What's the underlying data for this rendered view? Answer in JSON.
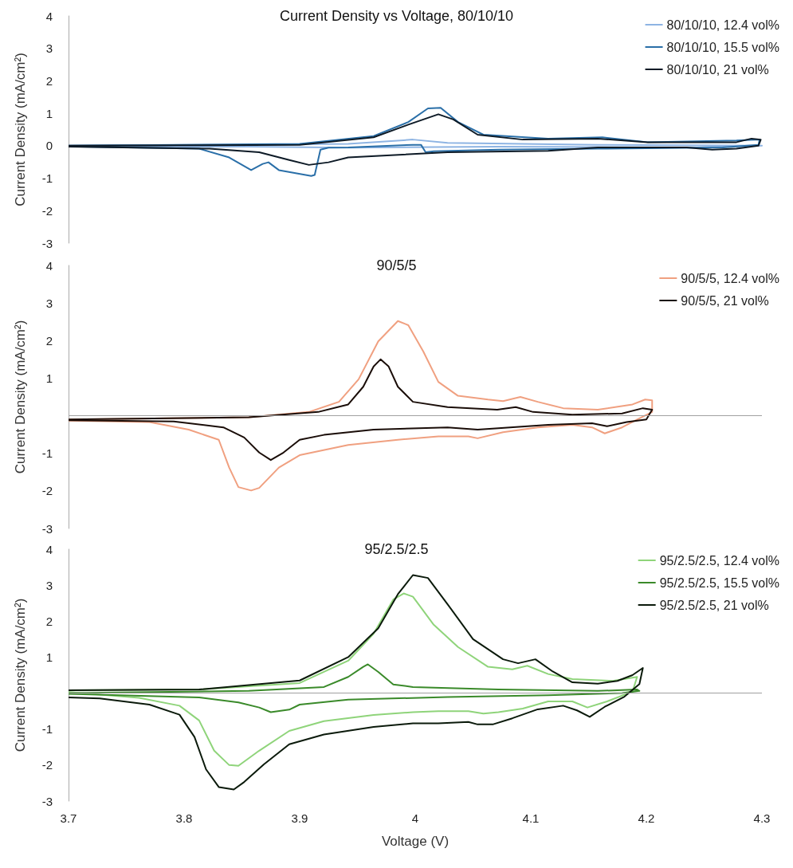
{
  "chart_data": [
    {
      "type": "line",
      "title": "Current Density vs Voltage, 80/10/10",
      "ylabel": "Current Density (mA/cm²)",
      "xlim": [
        3.7,
        4.3
      ],
      "ylim": [
        -3,
        4
      ],
      "yticks": [
        -3,
        -2,
        -1,
        0,
        1,
        2,
        3,
        4
      ],
      "tick_labels": "y",
      "grid": false,
      "legend": "top right",
      "marker": "none",
      "line_style": "solid",
      "series": [
        {
          "name": "80/10/10, 12.4 vol%",
          "color": "#8eb4e3",
          "x": [
            3.7,
            3.942,
            3.998,
            4.028,
            4.158,
            4.3,
            4.244,
            4.072,
            3.942,
            3.856,
            3.7
          ],
          "values": [
            0,
            0.06,
            0.19,
            0.09,
            0.03,
            0,
            -0.05,
            -0.03,
            -0.06,
            -0.03,
            -0.02
          ]
        },
        {
          "name": "80/10/10, 15.5 vol%",
          "color": "#2a6fa8",
          "x": [
            3.7,
            3.9,
            3.964,
            3.994,
            4.011,
            4.022,
            4.037,
            4.059,
            4.115,
            4.162,
            4.201,
            4.278,
            4.298,
            4.297,
            4.266,
            4.158,
            4.072,
            4.016,
            4.009,
            4.005,
            3.998,
            3.942,
            3.925,
            3.918,
            3.913,
            3.91,
            3.882,
            3.873,
            3.868,
            3.858,
            3.839,
            3.813,
            3.7
          ],
          "values": [
            0,
            0.06,
            0.3,
            0.73,
            1.15,
            1.17,
            0.73,
            0.34,
            0.22,
            0.26,
            0.11,
            0.16,
            0.19,
            0.03,
            -0.05,
            -0.09,
            -0.12,
            -0.17,
            -0.2,
            0.03,
            0.03,
            -0.05,
            -0.06,
            -0.12,
            -0.9,
            -0.93,
            -0.75,
            -0.51,
            -0.56,
            -0.75,
            -0.36,
            -0.09,
            -0.02
          ]
        },
        {
          "name": "80/10/10, 21 vol%",
          "color": "#0d1a26",
          "x": [
            3.7,
            3.9,
            3.964,
            3.994,
            4.02,
            4.033,
            4.054,
            4.093,
            4.158,
            4.201,
            4.278,
            4.291,
            4.299,
            4.297,
            4.278,
            4.257,
            4.235,
            4.158,
            4.115,
            4.028,
            3.942,
            3.925,
            3.908,
            3.891,
            3.865,
            3.822,
            3.7
          ],
          "values": [
            0,
            0.03,
            0.26,
            0.65,
            0.97,
            0.81,
            0.34,
            0.19,
            0.22,
            0.11,
            0.11,
            0.22,
            0.19,
            0,
            -0.09,
            -0.12,
            -0.05,
            -0.05,
            -0.16,
            -0.2,
            -0.36,
            -0.51,
            -0.59,
            -0.44,
            -0.2,
            -0.09,
            -0.03
          ]
        }
      ]
    },
    {
      "type": "line",
      "title": "90/5/5",
      "ylabel": "Current Density (mA/cm²)",
      "xlim": [
        3.7,
        4.3
      ],
      "ylim": [
        -3,
        4
      ],
      "yticks": [
        -3,
        -2,
        -1,
        1,
        2,
        3,
        4
      ],
      "ref_lines": [
        {
          "axis": "y",
          "value": 0,
          "color": "#a0a0a0"
        }
      ],
      "tick_labels": "y",
      "grid": false,
      "legend": "top right",
      "marker": "none",
      "line_style": "solid",
      "series": [
        {
          "name": "90/5/5, 12.4 vol%",
          "color": "#f0a080",
          "x": [
            3.7,
            3.856,
            3.908,
            3.934,
            3.951,
            3.968,
            3.985,
            3.994,
            4.007,
            4.02,
            4.037,
            4.063,
            4.076,
            4.091,
            4.106,
            4.128,
            4.158,
            4.188,
            4.199,
            4.205,
            4.205,
            4.192,
            4.179,
            4.164,
            4.153,
            4.136,
            4.106,
            4.076,
            4.054,
            4.046,
            4.02,
            3.985,
            3.942,
            3.9,
            3.882,
            3.865,
            3.858,
            3.847,
            3.839,
            3.83,
            3.804,
            3.77,
            3.7
          ],
          "values": [
            -0.1,
            -0.04,
            0.1,
            0.37,
            0.97,
            1.98,
            2.52,
            2.41,
            1.71,
            0.9,
            0.53,
            0.43,
            0.39,
            0.5,
            0.37,
            0.2,
            0.16,
            0.3,
            0.43,
            0.41,
            0.1,
            -0.1,
            -0.31,
            -0.47,
            -0.31,
            -0.24,
            -0.31,
            -0.44,
            -0.6,
            -0.55,
            -0.55,
            -0.64,
            -0.78,
            -1.05,
            -1.38,
            -1.92,
            -1.99,
            -1.9,
            -1.38,
            -0.64,
            -0.37,
            -0.17,
            -0.13
          ]
        },
        {
          "name": "90/5/5, 21 vol%",
          "color": "#1a0d08",
          "x": [
            3.7,
            3.856,
            3.916,
            3.942,
            3.955,
            3.964,
            3.97,
            3.977,
            3.985,
            3.998,
            4.028,
            4.071,
            4.087,
            4.102,
            4.136,
            4.179,
            4.197,
            4.205,
            4.2,
            4.183,
            4.166,
            4.153,
            4.115,
            4.072,
            4.054,
            4.028,
            3.964,
            3.921,
            3.9,
            3.886,
            3.875,
            3.865,
            3.852,
            3.834,
            3.791,
            3.7
          ],
          "values": [
            -0.1,
            -0.04,
            0.1,
            0.3,
            0.77,
            1.31,
            1.5,
            1.31,
            0.77,
            0.37,
            0.23,
            0.16,
            0.23,
            0.1,
            0.03,
            0.06,
            0.2,
            0.16,
            -0.1,
            -0.17,
            -0.28,
            -0.2,
            -0.24,
            -0.33,
            -0.37,
            -0.31,
            -0.37,
            -0.51,
            -0.64,
            -0.98,
            -1.18,
            -0.98,
            -0.58,
            -0.31,
            -0.15,
            -0.12
          ]
        }
      ]
    },
    {
      "type": "line",
      "title": "95/2.5/2.5",
      "xlabel": "Voltage (V)",
      "ylabel": "Current Density (mA/cm²)",
      "xlim": [
        3.7,
        4.3
      ],
      "xticks": [
        3.7,
        3.8,
        3.9,
        4,
        4.1,
        4.2,
        4.3
      ],
      "ylim": [
        -3,
        4
      ],
      "yticks": [
        -3,
        -2,
        -1,
        1,
        2,
        3,
        4
      ],
      "ref_lines": [
        {
          "axis": "y",
          "value": 0,
          "color": "#a0a0a0"
        }
      ],
      "grid": false,
      "legend": "top right",
      "marker": "none",
      "line_style": "solid",
      "series": [
        {
          "name": "95/2.5/2.5, 12.4 vol%",
          "color": "#8fd47a",
          "x": [
            3.7,
            3.813,
            3.9,
            3.942,
            3.964,
            3.981,
            3.99,
            3.998,
            4.016,
            4.037,
            4.063,
            4.084,
            4.097,
            4.115,
            4.136,
            4.171,
            4.192,
            4.188,
            4.166,
            4.149,
            4.136,
            4.115,
            4.093,
            4.072,
            4.059,
            4.046,
            4.02,
            3.998,
            3.964,
            3.921,
            3.891,
            3.865,
            3.847,
            3.839,
            3.826,
            3.813,
            3.796,
            3.761,
            3.7
          ],
          "values": [
            0.08,
            0.1,
            0.28,
            0.9,
            1.65,
            2.6,
            2.77,
            2.68,
            1.9,
            1.28,
            0.73,
            0.66,
            0.76,
            0.53,
            0.39,
            0.34,
            0.45,
            0.04,
            -0.23,
            -0.4,
            -0.23,
            -0.23,
            -0.43,
            -0.53,
            -0.57,
            -0.5,
            -0.5,
            -0.53,
            -0.61,
            -0.78,
            -1.05,
            -1.6,
            -2.02,
            -2.0,
            -1.6,
            -0.76,
            -0.35,
            -0.13,
            0.03
          ]
        },
        {
          "name": "95/2.5/2.5, 15.5 vol%",
          "color": "#3a8a2a",
          "x": [
            3.7,
            3.856,
            3.921,
            3.942,
            3.955,
            3.959,
            3.968,
            3.981,
            3.998,
            4.072,
            4.158,
            4.192,
            4.194,
            4.179,
            4.115,
            4.028,
            3.942,
            3.9,
            3.891,
            3.875,
            3.865,
            3.847,
            3.813,
            3.7
          ],
          "values": [
            0,
            0.06,
            0.17,
            0.45,
            0.73,
            0.8,
            0.59,
            0.24,
            0.17,
            0.1,
            0.06,
            0.1,
            0.06,
            0,
            -0.06,
            -0.11,
            -0.18,
            -0.32,
            -0.46,
            -0.53,
            -0.4,
            -0.26,
            -0.12,
            -0.02
          ]
        },
        {
          "name": "95/2.5/2.5, 21 vol%",
          "color": "#0b1a0b",
          "x": [
            3.7,
            3.813,
            3.9,
            3.942,
            3.968,
            3.985,
            3.998,
            4.011,
            4.028,
            4.05,
            4.076,
            4.089,
            4.104,
            4.119,
            4.136,
            4.158,
            4.175,
            4.188,
            4.197,
            4.194,
            4.181,
            4.164,
            4.151,
            4.14,
            4.128,
            4.106,
            4.084,
            4.067,
            4.054,
            4.046,
            4.02,
            3.998,
            3.964,
            3.921,
            3.891,
            3.869,
            3.852,
            3.843,
            3.83,
            3.819,
            3.809,
            3.796,
            3.77,
            3.727,
            3.7
          ],
          "values": [
            0.08,
            0.1,
            0.35,
            1.0,
            1.8,
            2.75,
            3.28,
            3.2,
            2.47,
            1.5,
            0.94,
            0.83,
            0.94,
            0.6,
            0.3,
            0.26,
            0.34,
            0.5,
            0.7,
            0.25,
            -0.1,
            -0.38,
            -0.66,
            -0.48,
            -0.35,
            -0.45,
            -0.7,
            -0.87,
            -0.87,
            -0.8,
            -0.84,
            -0.84,
            -0.94,
            -1.15,
            -1.42,
            -1.98,
            -2.47,
            -2.68,
            -2.61,
            -2.12,
            -1.22,
            -0.6,
            -0.32,
            -0.15,
            -0.12
          ]
        }
      ]
    }
  ]
}
